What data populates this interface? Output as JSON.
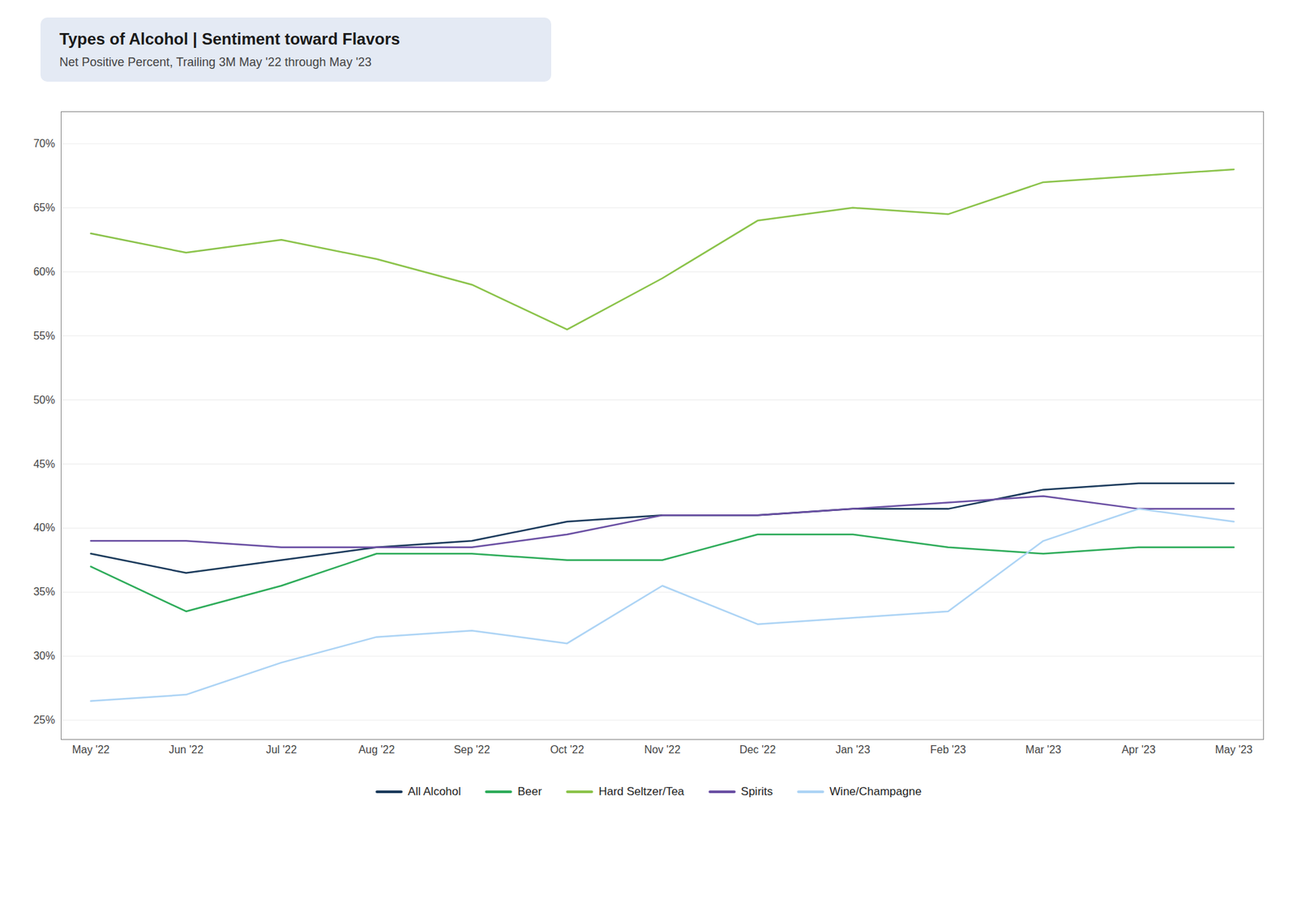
{
  "chart_data": {
    "type": "line",
    "title": "Types of Alcohol | Sentiment toward Flavors",
    "subtitle": "Net Positive Percent, Trailing 3M May '22 through May '23",
    "categories": [
      "May '22",
      "Jun '22",
      "Jul '22",
      "Aug '22",
      "Sep '22",
      "Oct '22",
      "Nov '22",
      "Dec '22",
      "Jan '23",
      "Feb '23",
      "Mar '23",
      "Apr '23",
      "May '23"
    ],
    "series": [
      {
        "name": "All Alcohol",
        "color": "#1b3a5c",
        "values": [
          0.38,
          0.365,
          0.375,
          0.385,
          0.39,
          0.405,
          0.41,
          0.41,
          0.415,
          0.415,
          0.43,
          0.435,
          0.435
        ]
      },
      {
        "name": "Beer",
        "color": "#2eac5a",
        "values": [
          0.37,
          0.335,
          0.355,
          0.38,
          0.38,
          0.375,
          0.375,
          0.395,
          0.395,
          0.385,
          0.38,
          0.385,
          0.385
        ]
      },
      {
        "name": "Hard Seltzer/Tea",
        "color": "#8bc34a",
        "values": [
          0.63,
          0.615,
          0.625,
          0.61,
          0.59,
          0.555,
          0.595,
          0.64,
          0.65,
          0.645,
          0.67,
          0.675,
          0.68
        ]
      },
      {
        "name": "Spirits",
        "color": "#6a4fa3",
        "values": [
          0.39,
          0.39,
          0.385,
          0.385,
          0.385,
          0.395,
          0.41,
          0.41,
          0.415,
          0.42,
          0.425,
          0.415,
          0.415
        ]
      },
      {
        "name": "Wine/Champagne",
        "color": "#add4f5",
        "values": [
          0.265,
          0.27,
          0.295,
          0.315,
          0.32,
          0.31,
          0.355,
          0.325,
          0.33,
          0.335,
          0.39,
          0.415,
          0.405
        ]
      }
    ],
    "ylim": [
      0.235,
      0.725
    ],
    "yticks": [
      {
        "value": 0.25,
        "label": "25%"
      },
      {
        "value": 0.3,
        "label": "30%"
      },
      {
        "value": 0.35,
        "label": "35%"
      },
      {
        "value": 0.4,
        "label": "40%"
      },
      {
        "value": 0.45,
        "label": "45%"
      },
      {
        "value": 0.5,
        "label": "50%"
      },
      {
        "value": 0.55,
        "label": "55%"
      },
      {
        "value": 0.6,
        "label": "60%"
      },
      {
        "value": 0.65,
        "label": "65%"
      },
      {
        "value": 0.7,
        "label": "70%"
      }
    ],
    "grid": true,
    "legend": "bottom"
  }
}
